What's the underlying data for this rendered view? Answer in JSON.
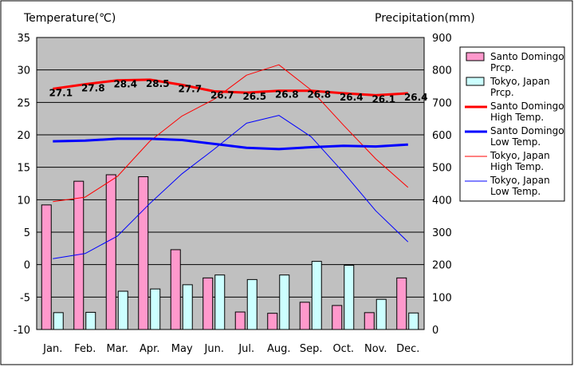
{
  "chart_data": {
    "type": "bar+line",
    "left_axis_title": "Temperature(℃)",
    "right_axis_title": "Precipitation(mm)",
    "left_axis": {
      "range": [
        -10,
        35
      ],
      "ticks": [
        "35",
        "30",
        "25",
        "20",
        "15",
        "10",
        "5",
        "0",
        "-5",
        "-10"
      ]
    },
    "right_axis": {
      "range": [
        0,
        900
      ],
      "ticks": [
        "900",
        "800",
        "700",
        "600",
        "500",
        "400",
        "300",
        "200",
        "100",
        "0"
      ]
    },
    "categories": [
      "Jan.",
      "Feb.",
      "Mar.",
      "Apr.",
      "May",
      "Jun.",
      "Jul.",
      "Aug.",
      "Sep.",
      "Oct.",
      "Nov.",
      "Dec."
    ],
    "grid": true,
    "plot_background": "#c0c0c0",
    "series": [
      {
        "name_lines": [
          "Santo Domingo",
          "Prcp."
        ],
        "kind": "bar",
        "axis": "right",
        "color": "#ff99cc",
        "values": [
          384,
          457,
          477,
          471,
          246,
          159,
          54,
          50,
          84,
          74,
          52,
          159
        ]
      },
      {
        "name_lines": [
          "Tokyo, Japan",
          "Prcp."
        ],
        "kind": "bar",
        "axis": "right",
        "color": "#ccffff",
        "values": [
          52,
          53,
          118,
          125,
          138,
          168,
          154,
          168,
          210,
          198,
          93,
          51
        ]
      },
      {
        "name_lines": [
          "Santo Domingo",
          "High Temp."
        ],
        "kind": "line",
        "axis": "left",
        "color": "#ff0000",
        "width": 3,
        "values": [
          27.1,
          27.8,
          28.4,
          28.5,
          27.7,
          26.7,
          26.5,
          26.8,
          26.8,
          26.4,
          26.1,
          26.4
        ],
        "labels": [
          "27.1",
          "27.8",
          "28.4",
          "28.5",
          "27.7",
          "26.7",
          "26.5",
          "26.8",
          "26.8",
          "26.4",
          "26.1",
          "26.4"
        ]
      },
      {
        "name_lines": [
          "Santo Domingo",
          "Low Temp."
        ],
        "kind": "line",
        "axis": "left",
        "color": "#0000ff",
        "width": 3,
        "values": [
          19.0,
          19.1,
          19.4,
          19.4,
          19.2,
          18.6,
          18.0,
          17.8,
          18.1,
          18.3,
          18.2,
          18.5
        ]
      },
      {
        "name_lines": [
          "Tokyo, Japan",
          "High Temp."
        ],
        "kind": "line",
        "axis": "left",
        "color": "#ff0000",
        "width": 1,
        "values": [
          9.7,
          10.4,
          13.6,
          19.0,
          22.9,
          25.5,
          29.2,
          30.8,
          26.9,
          21.5,
          16.3,
          11.9
        ]
      },
      {
        "name_lines": [
          "Tokyo, Japan",
          "Low Temp."
        ],
        "kind": "line",
        "axis": "left",
        "color": "#0000ff",
        "width": 1,
        "values": [
          0.9,
          1.7,
          4.4,
          9.4,
          14.0,
          17.8,
          21.8,
          23.0,
          19.7,
          14.2,
          8.3,
          3.5
        ]
      }
    ]
  }
}
